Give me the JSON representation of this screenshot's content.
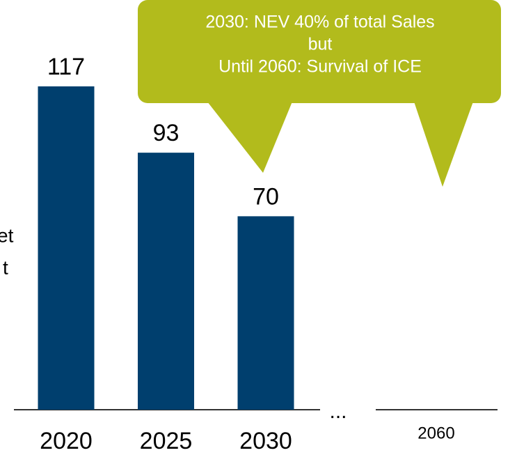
{
  "chart_data": {
    "type": "bar",
    "categories": [
      "2020",
      "2025",
      "2030",
      "2060"
    ],
    "values": [
      117,
      93,
      70,
      null
    ],
    "color": "#003f6e",
    "ylim": [
      0,
      148
    ],
    "separator": "...",
    "annotation": {
      "lines": [
        "2030: NEV 40% of total Sales",
        "but",
        "Until 2060: Survival of ICE"
      ],
      "color": "#b2bb1c"
    },
    "side_text": [
      "et",
      "t"
    ]
  }
}
